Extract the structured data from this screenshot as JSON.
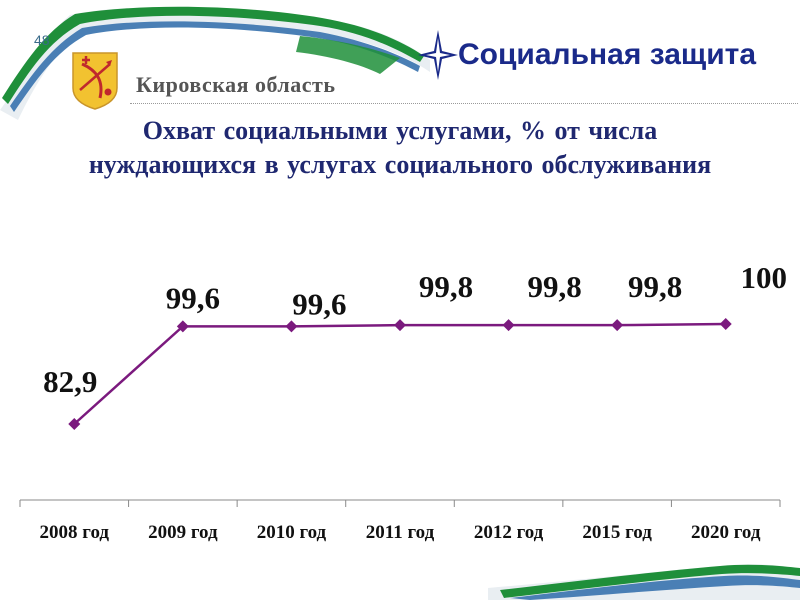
{
  "slide": {
    "page_number": "48",
    "region": "Кировская область",
    "section_title": "Социальная защита",
    "title_lines": [
      "Охват социальными услугами, % от числа",
      "нуждающихся в услугах социального обслуживания"
    ]
  },
  "colors": {
    "line": "#7b1a7e",
    "ribbon_green": "#1f8f3a",
    "ribbon_blue": "#4a7fb5",
    "title": "#1f2870"
  },
  "icons": {
    "emblem": "kirov-coat-of-arms-icon",
    "star": "compass-star-icon"
  },
  "chart_data": {
    "type": "line",
    "categories": [
      "2008 год",
      "2009 год",
      "2010 год",
      "2011 год",
      "2012 год",
      "2015 год",
      "2020 год"
    ],
    "values": [
      82.9,
      99.6,
      99.6,
      99.8,
      99.8,
      99.8,
      100
    ],
    "value_labels": [
      "82,9",
      "99,6",
      "99,6",
      "99,8",
      "99,8",
      "99,8",
      "100"
    ],
    "title": "",
    "xlabel": "",
    "ylabel": "",
    "ylim": [
      70,
      110
    ],
    "grid": false,
    "legend": "none",
    "marker": "diamond"
  }
}
